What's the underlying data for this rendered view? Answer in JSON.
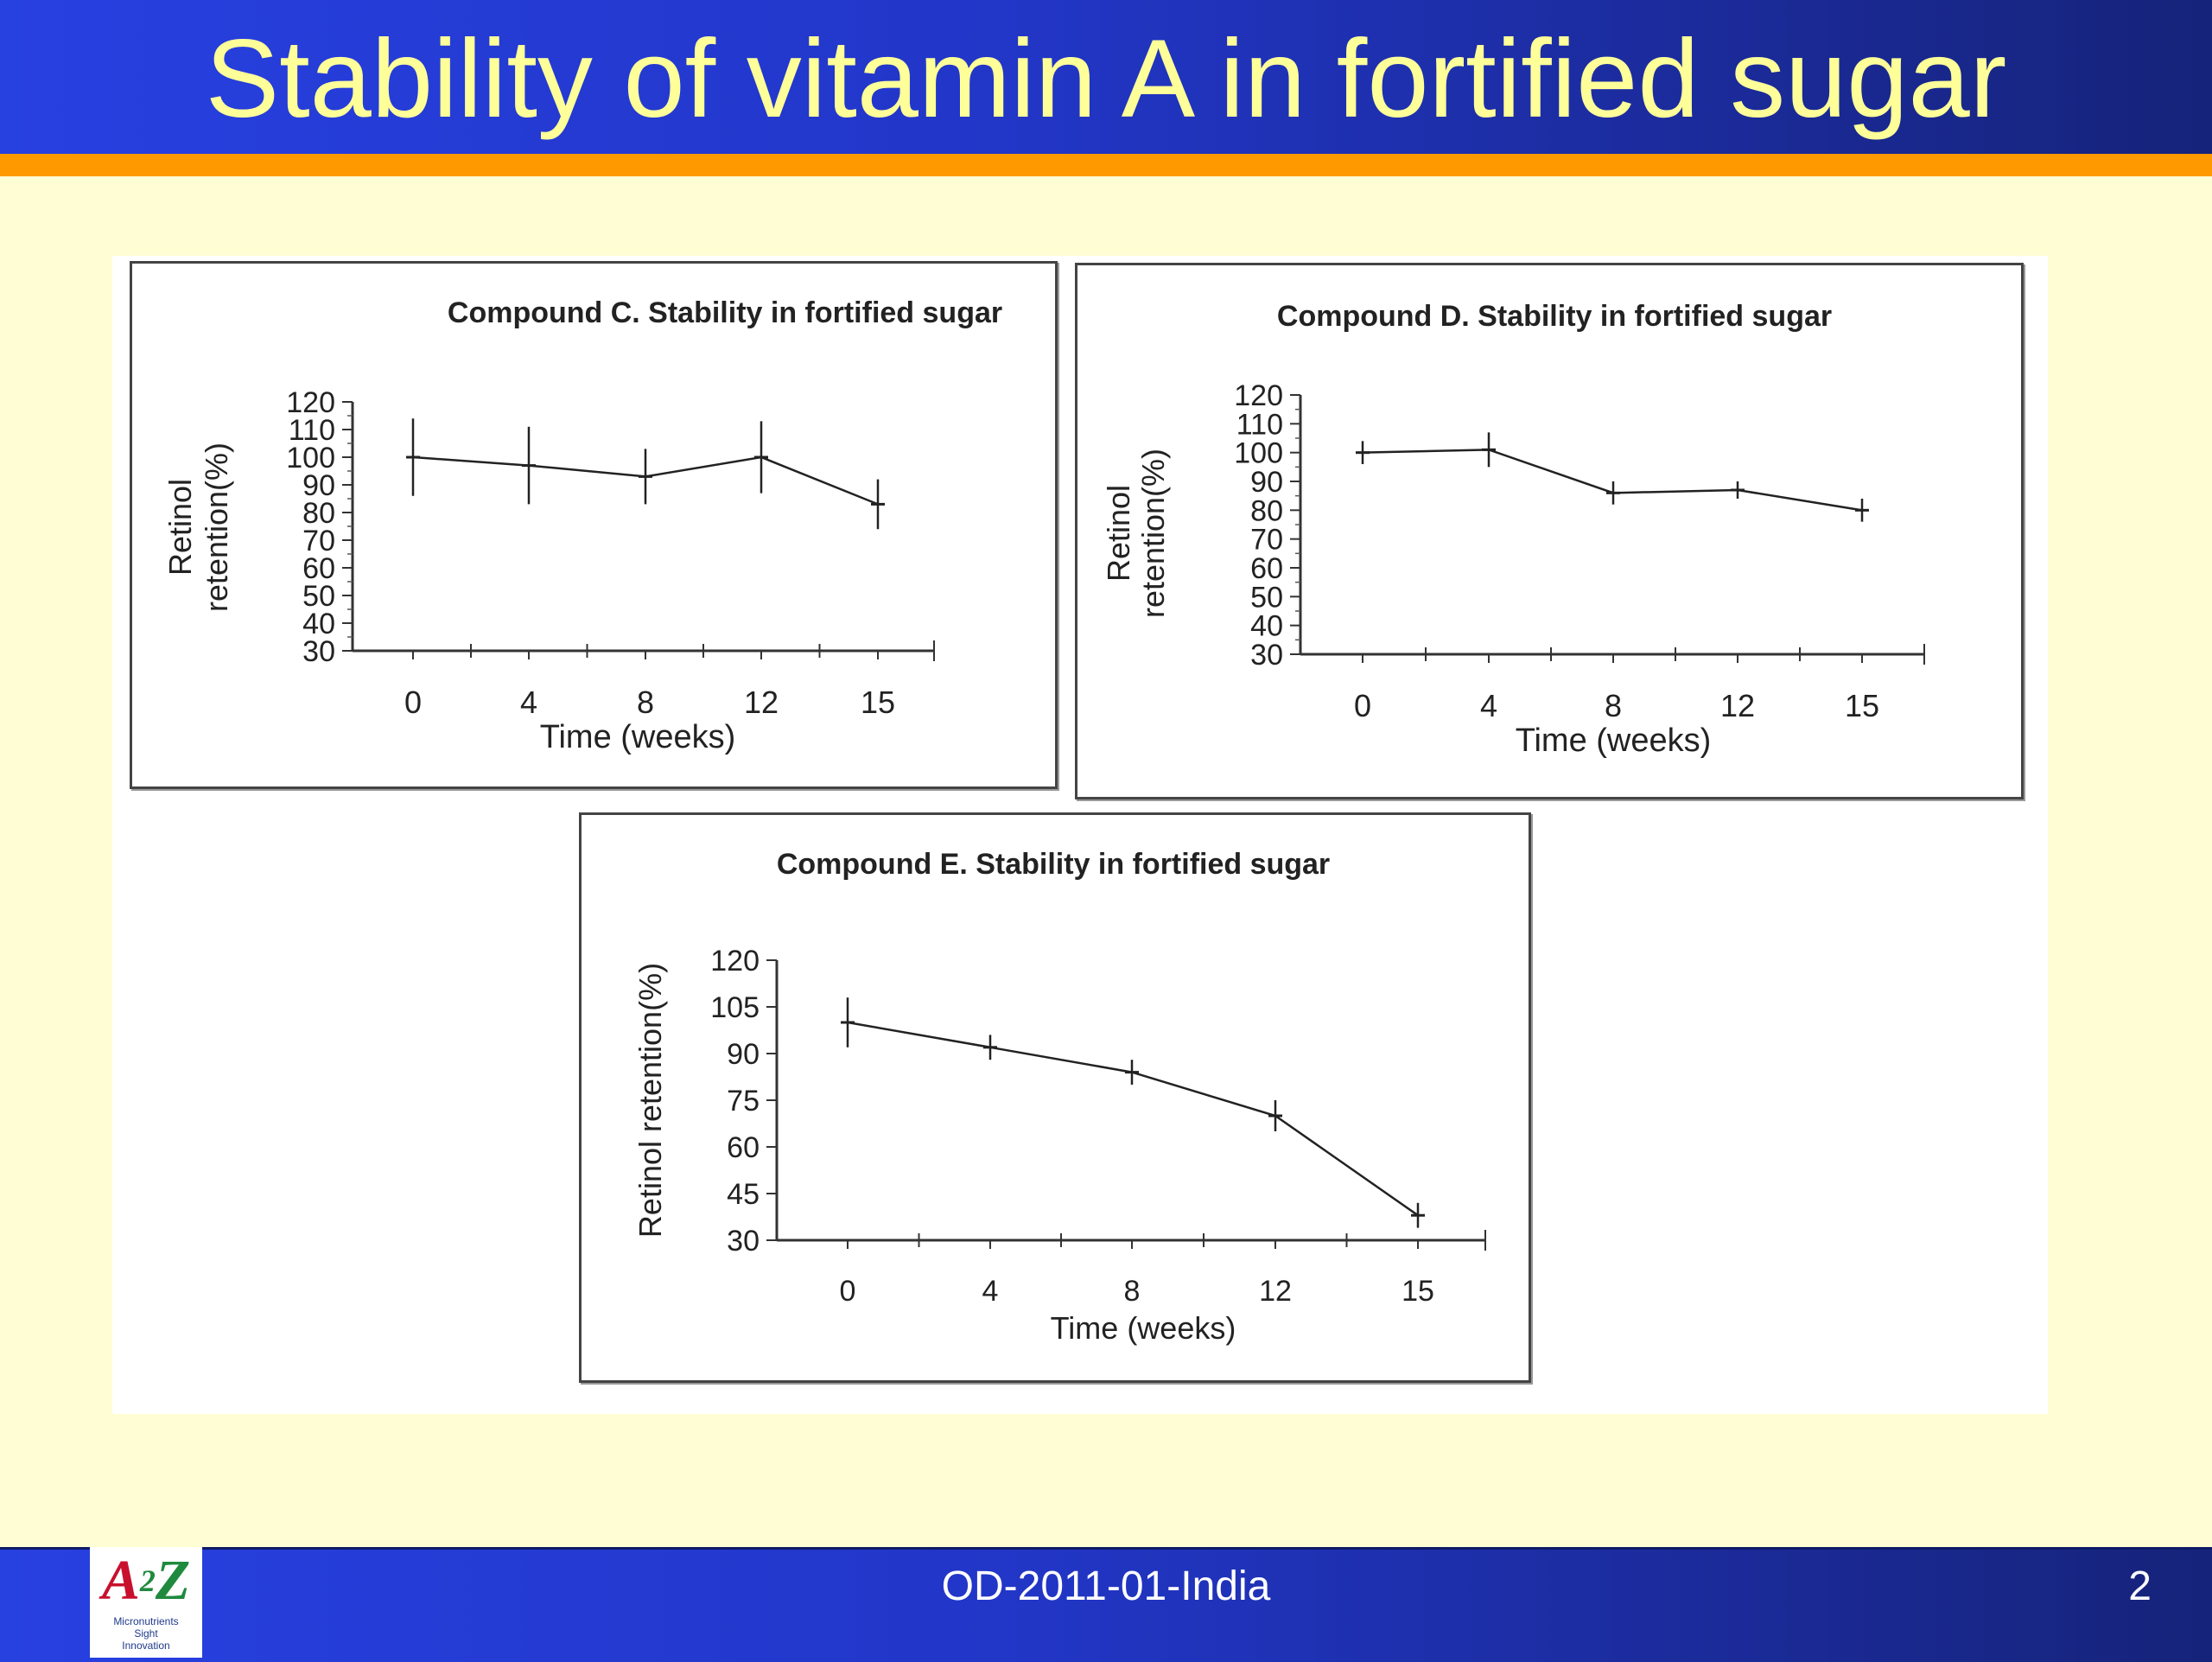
{
  "slide": {
    "title": "Stability of vitamin A in fortified sugar",
    "footer_text": "OD-2011-01-India",
    "page_number": "2",
    "logo": {
      "mark": "A2Z",
      "lines": [
        "Micronutrients",
        "Sight",
        "Innovation"
      ]
    },
    "colors": {
      "title_text": "#FFFF99",
      "bar": "#2236C8",
      "accent_rule": "#FF9900",
      "background": "#FFFDD3"
    }
  },
  "chart_data": [
    {
      "type": "line",
      "title": "Compound C.  Stability in fortified sugar",
      "xlabel": "Time (weeks)",
      "ylabel": [
        "Retinol",
        "retention(%)"
      ],
      "x_ticks": [
        "0",
        "4",
        "8",
        "12",
        "15"
      ],
      "y_ticks": [
        "30",
        "40",
        "50",
        "60",
        "70",
        "80",
        "90",
        "100",
        "110",
        "120"
      ],
      "ylim": [
        30,
        120
      ],
      "series": [
        {
          "x": [
            0,
            4,
            8,
            12,
            15
          ],
          "y": [
            100,
            97,
            93,
            100,
            83
          ],
          "error": [
            14,
            14,
            10,
            13,
            9
          ]
        }
      ]
    },
    {
      "type": "line",
      "title": "Compound D.  Stability in fortified sugar",
      "xlabel": "Time (weeks)",
      "ylabel": [
        "Retinol",
        "retention(%)"
      ],
      "x_ticks": [
        "0",
        "4",
        "8",
        "12",
        "15"
      ],
      "y_ticks": [
        "30",
        "40",
        "50",
        "60",
        "70",
        "80",
        "90",
        "100",
        "110",
        "120"
      ],
      "ylim": [
        30,
        120
      ],
      "series": [
        {
          "x": [
            0,
            4,
            8,
            12,
            15
          ],
          "y": [
            100,
            101,
            86,
            87,
            80
          ],
          "error": [
            4,
            6,
            4,
            3,
            4
          ]
        }
      ]
    },
    {
      "type": "line",
      "title": "Compound E.  Stability in fortified sugar",
      "xlabel": "Time (weeks)",
      "ylabel": [
        "Retinol retention(%)"
      ],
      "x_ticks": [
        "0",
        "4",
        "8",
        "12",
        "15"
      ],
      "y_ticks": [
        "30",
        "45",
        "60",
        "75",
        "90",
        "105",
        "120"
      ],
      "ylim": [
        30,
        120
      ],
      "series": [
        {
          "x": [
            0,
            4,
            8,
            12,
            15
          ],
          "y": [
            100,
            92,
            84,
            70,
            38
          ],
          "error": [
            8,
            4,
            4,
            5,
            4
          ]
        }
      ]
    }
  ]
}
